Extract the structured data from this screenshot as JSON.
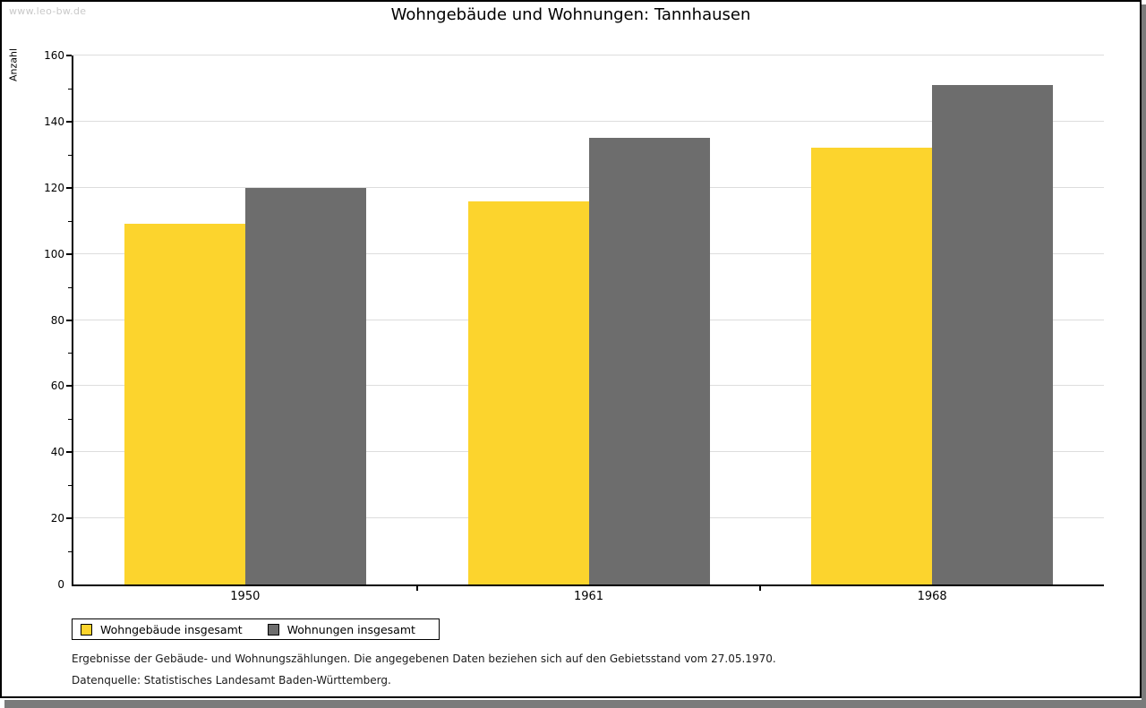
{
  "watermark": "www.leo-bw.de",
  "title": "Wohngebäude und Wohnungen: Tannhausen",
  "footnotes": [
    "Ergebnisse der Gebäude- und Wohnungszählungen. Die angegebenen Daten beziehen sich auf den Gebietsstand vom 27.05.1970.",
    "Datenquelle: Statistisches Landesamt Baden-Württemberg."
  ],
  "colors": {
    "bar_yellow": "#FCD42D",
    "bar_gray": "#6D6D6D",
    "gridline": "#DDDDDD",
    "axis": "#000000",
    "watermark_text": "#C9C9C9",
    "frame_shadow": "#7B7B7B"
  },
  "chart_data": {
    "type": "bar",
    "title": "Wohngebäude und Wohnungen: Tannhausen",
    "xlabel": "",
    "ylabel": "Anzahl",
    "categories": [
      "1950",
      "1961",
      "1968"
    ],
    "series": [
      {
        "name": "Wohngebäude insgesamt",
        "color": "#FCD42D",
        "values": [
          109,
          116,
          132
        ]
      },
      {
        "name": "Wohnungen insgesamt",
        "color": "#6D6D6D",
        "values": [
          120,
          135,
          151
        ]
      }
    ],
    "ylim": [
      0,
      160
    ],
    "ytick_step": 20,
    "yminor_step": 10,
    "ytick_labels": [
      "0",
      "20",
      "40",
      "60",
      "80",
      "100",
      "120",
      "140",
      "160"
    ],
    "grid": "horizontal-major",
    "legend_position": "bottom-left"
  }
}
